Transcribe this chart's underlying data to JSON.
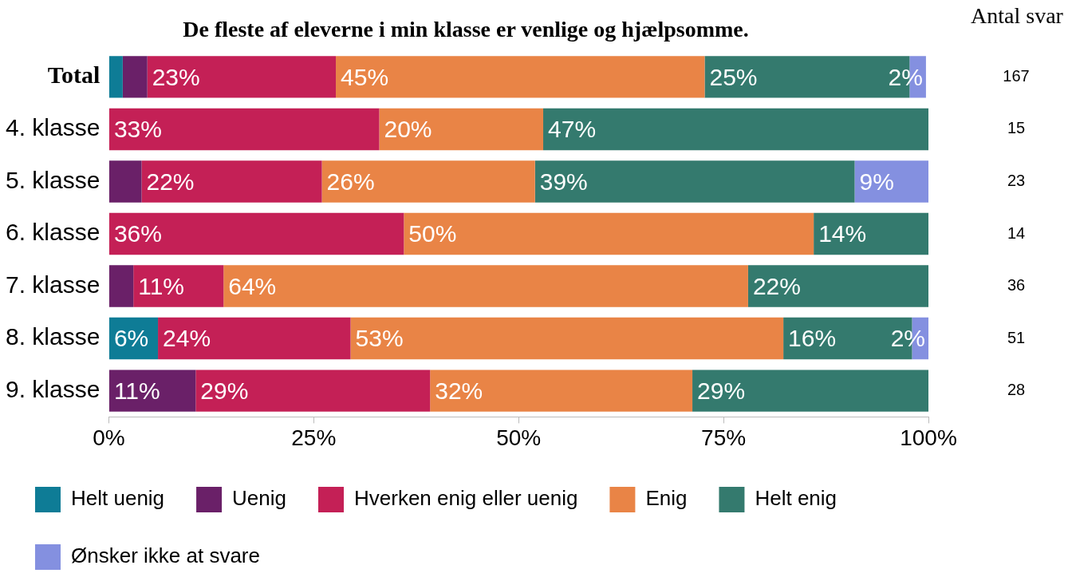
{
  "chart_data": {
    "type": "bar",
    "orientation": "horizontal",
    "stacked": true,
    "title": "De fleste af eleverne i min klasse er venlige og hjælpsomme.",
    "categories": [
      "Total",
      "4. klasse",
      "5. klasse",
      "6. klasse",
      "7. klasse",
      "8. klasse",
      "9. klasse"
    ],
    "series": [
      {
        "name": "Helt uenig",
        "color": "#0e7c96",
        "values": [
          1.7,
          0,
          0,
          0,
          0,
          6,
          0
        ],
        "value_labels": [
          null,
          null,
          null,
          null,
          null,
          "6%",
          null
        ]
      },
      {
        "name": "Uenig",
        "color": "#6a2068",
        "values": [
          3,
          0,
          4,
          0,
          3,
          0,
          10.6
        ],
        "value_labels": [
          null,
          null,
          null,
          null,
          null,
          null,
          "11%"
        ]
      },
      {
        "name": "Hverken enig eller uenig",
        "color": "#c42056",
        "values": [
          23,
          33,
          22,
          36,
          11,
          23.5,
          28.6
        ],
        "value_labels": [
          "23%",
          "33%",
          "22%",
          "36%",
          "11%",
          "24%",
          "29%"
        ]
      },
      {
        "name": "Enig",
        "color": "#e98446",
        "values": [
          45,
          20,
          26,
          50,
          64,
          52.8,
          32
        ],
        "value_labels": [
          "45%",
          "20%",
          "26%",
          "50%",
          "64%",
          "53%",
          "32%"
        ]
      },
      {
        "name": "Helt enig",
        "color": "#347a6e",
        "values": [
          25,
          47,
          39,
          14,
          22,
          15.7,
          28.8
        ],
        "value_labels": [
          "25%",
          "47%",
          "39%",
          "14%",
          "22%",
          "16%",
          "29%"
        ]
      },
      {
        "name": "Ønsker ikke at svare",
        "color": "#8490e0",
        "values": [
          2,
          0,
          9,
          0,
          0,
          2,
          0
        ],
        "value_labels": [
          "2%",
          null,
          "9%",
          null,
          null,
          "2%",
          null
        ]
      }
    ],
    "xlim": [
      0,
      100
    ],
    "xticks": [
      {
        "value": 0,
        "label": "0%"
      },
      {
        "value": 25,
        "label": "25%"
      },
      {
        "value": 50,
        "label": "50%"
      },
      {
        "value": 75,
        "label": "75%"
      },
      {
        "value": 100,
        "label": "100%"
      }
    ],
    "annotations": [
      "Antal svar",
      "167",
      "15",
      "23",
      "14",
      "36",
      "51",
      "28"
    ],
    "legend": "bottom",
    "grid": false
  }
}
